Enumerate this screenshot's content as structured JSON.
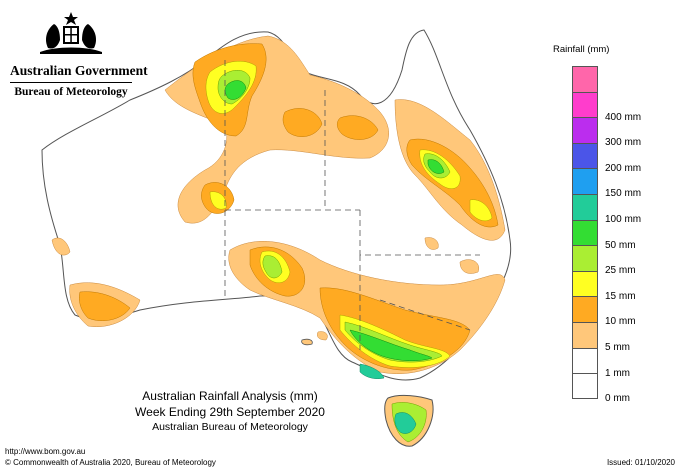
{
  "header": {
    "government": "Australian Government",
    "bureau": "Bureau of Meteorology",
    "crest_icon": "coat-of-arms-icon"
  },
  "legend": {
    "title": "Rainfall (mm)",
    "items": [
      {
        "label": "",
        "color": "#ff66aa"
      },
      {
        "label": "400 mm",
        "color": "#ff3dcc"
      },
      {
        "label": "300 mm",
        "color": "#bb2dee"
      },
      {
        "label": "200 mm",
        "color": "#4b55e8"
      },
      {
        "label": "150 mm",
        "color": "#1f9ff0"
      },
      {
        "label": "100 mm",
        "color": "#22cc99"
      },
      {
        "label": "50 mm",
        "color": "#33dd33"
      },
      {
        "label": "25 mm",
        "color": "#aaee33"
      },
      {
        "label": "15 mm",
        "color": "#ffff22"
      },
      {
        "label": "10 mm",
        "color": "#ffaa22"
      },
      {
        "label": "5 mm",
        "color": "#ffc77a"
      },
      {
        "label": "1 mm",
        "color": "#ffffff"
      },
      {
        "label": "0 mm",
        "color": "#ffffff"
      }
    ]
  },
  "caption": {
    "line1": "Australian Rainfall Analysis (mm)",
    "line2": "Week Ending 29th September 2020",
    "line3": "Australian Bureau of Meteorology"
  },
  "footer": {
    "url": "http://www.bom.gov.au",
    "copyright": "© Commonwealth of Australia 2020, Bureau of Meteorology",
    "issued": "Issued: 01/10/2020"
  },
  "colors": {
    "light_orange": "#ffc77a",
    "orange": "#ffaa22",
    "yellow": "#ffff22",
    "light_green": "#aaee33",
    "green": "#33dd33",
    "teal": "#22cc99",
    "outline": "#555555"
  }
}
